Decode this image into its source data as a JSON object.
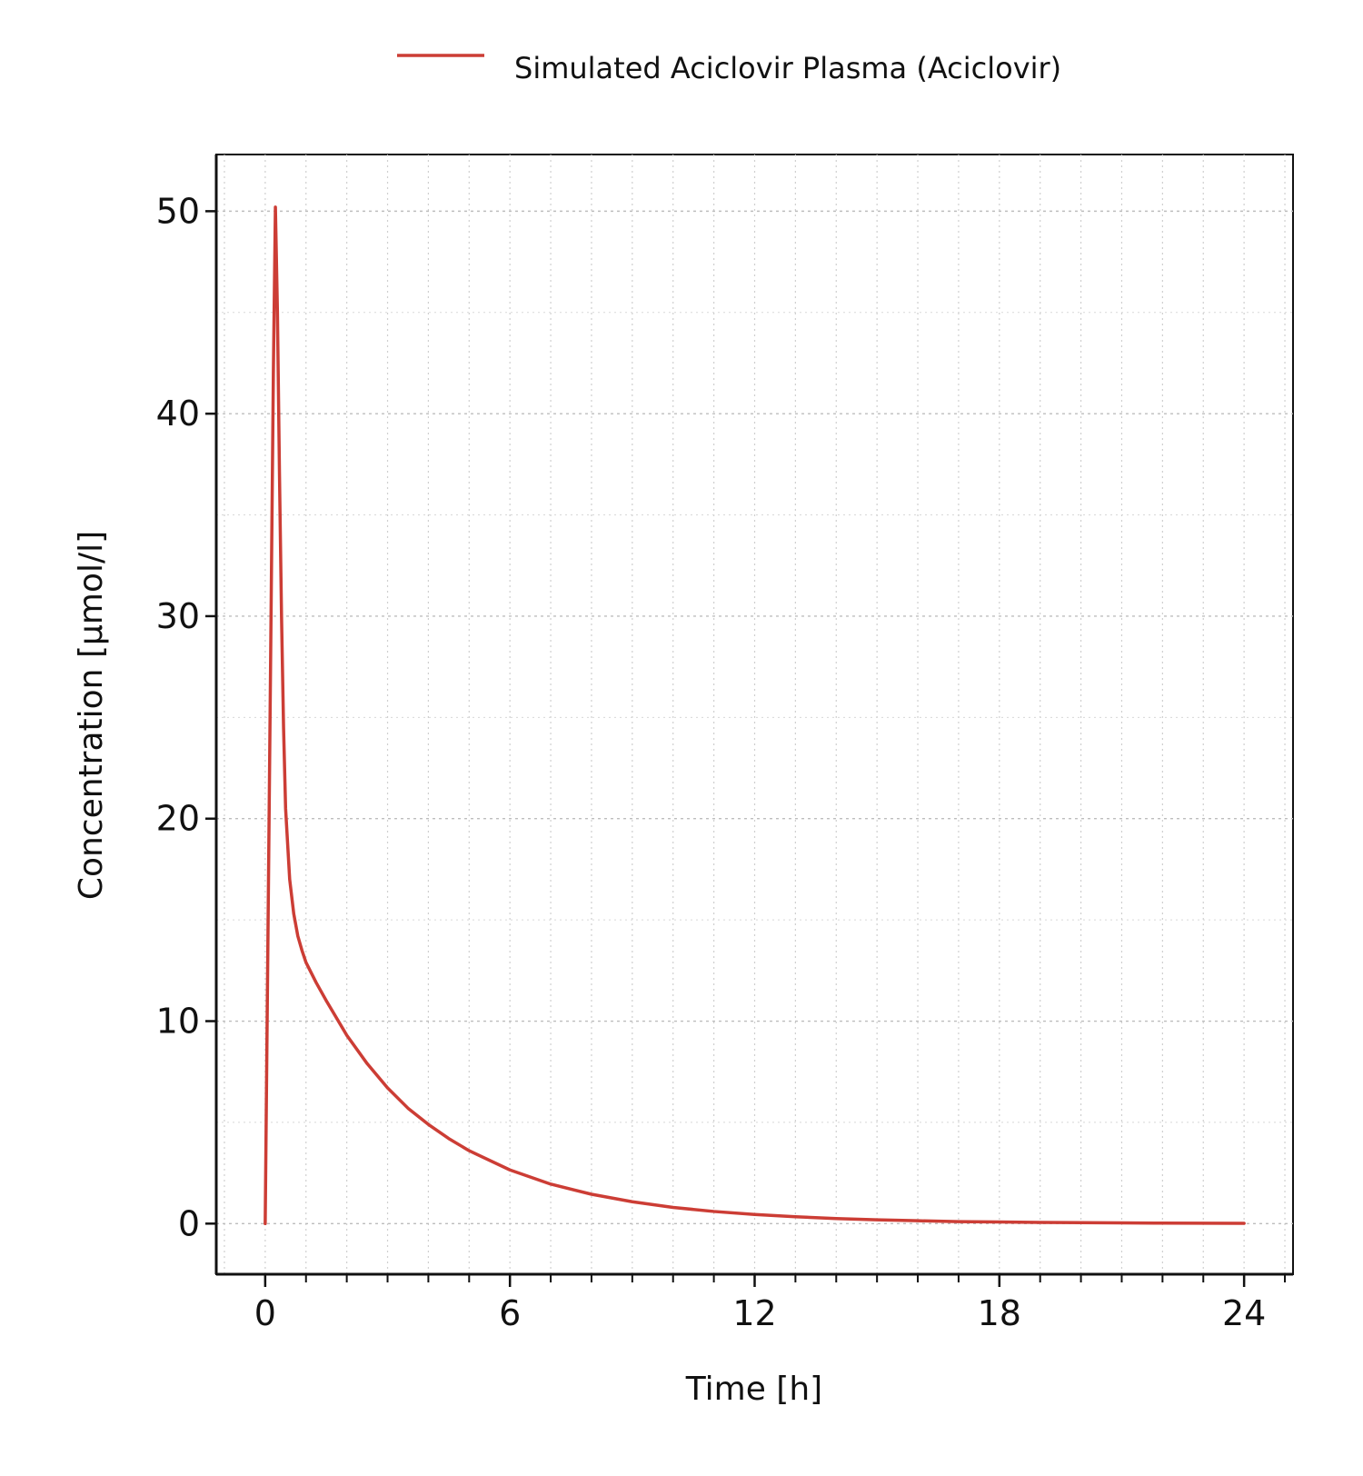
{
  "chart_data": {
    "type": "line",
    "xlabel": "Time [h]",
    "ylabel": "Concentration [µmol/l]",
    "xlim": [
      -1.2,
      25.2
    ],
    "ylim": [
      -2.5,
      52.8
    ],
    "x_ticks": [
      0,
      6,
      12,
      18,
      24
    ],
    "y_ticks": [
      0,
      10,
      20,
      30,
      40,
      50
    ],
    "x_tick_labels": [
      "0",
      "6",
      "12",
      "18",
      "24"
    ],
    "y_tick_labels": [
      "0",
      "10",
      "20",
      "30",
      "40",
      "50"
    ],
    "grid": true,
    "legend_position": "top",
    "series": [
      {
        "name": "Simulated Aciclovir Plasma (Aciclovir)",
        "color": "#cc3d35",
        "x": [
          0,
          0.05,
          0.1,
          0.15,
          0.2,
          0.25,
          0.3,
          0.35,
          0.4,
          0.45,
          0.5,
          0.6,
          0.7,
          0.8,
          0.9,
          1.0,
          1.25,
          1.5,
          2.0,
          2.5,
          3.0,
          3.5,
          4.0,
          4.5,
          5.0,
          6.0,
          7.0,
          8.0,
          9.0,
          10.0,
          11.0,
          12.0,
          13.0,
          14.0,
          15.0,
          16.0,
          17.0,
          18.0,
          19.0,
          20.0,
          21.0,
          22.0,
          23.0,
          24.0
        ],
        "y": [
          0,
          10.5,
          21,
          31.5,
          42,
          50.2,
          45,
          37,
          30,
          24.5,
          20.5,
          17,
          15.3,
          14.2,
          13.5,
          12.9,
          11.9,
          11.0,
          9.3,
          7.9,
          6.7,
          5.7,
          4.9,
          4.2,
          3.6,
          2.65,
          1.95,
          1.45,
          1.08,
          0.8,
          0.6,
          0.45,
          0.34,
          0.25,
          0.19,
          0.14,
          0.1,
          0.08,
          0.06,
          0.045,
          0.034,
          0.025,
          0.018,
          0.013
        ]
      }
    ]
  }
}
